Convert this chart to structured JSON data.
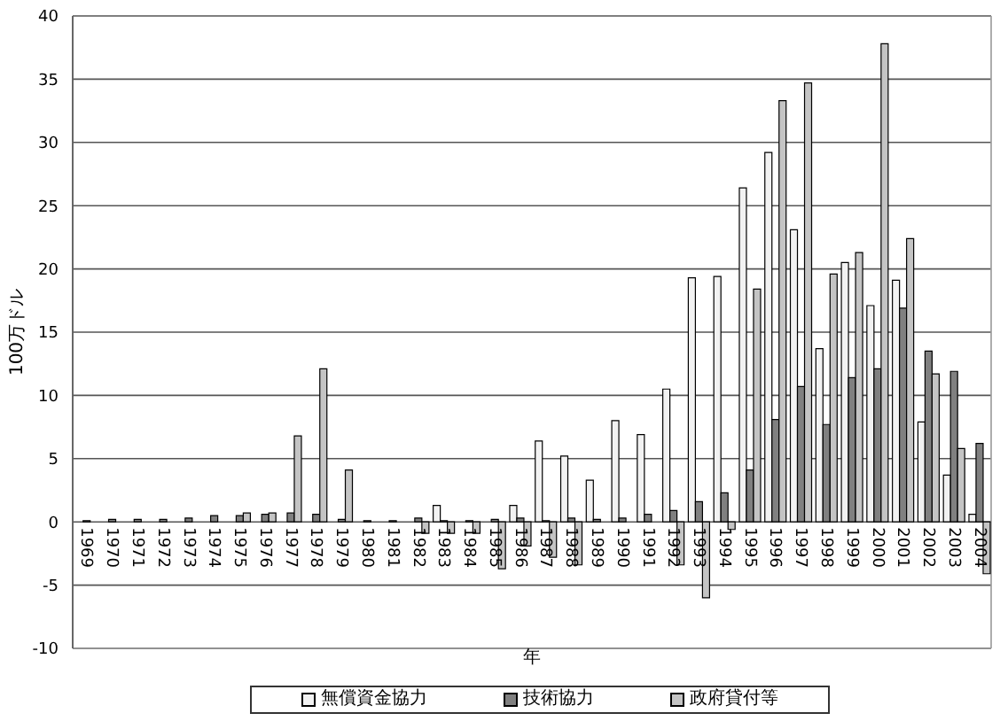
{
  "chart_data": {
    "type": "bar",
    "xlabel": "年",
    "ylabel": "100万ドル",
    "categories": [
      "1969",
      "1970",
      "1971",
      "1972",
      "1973",
      "1974",
      "1975",
      "1976",
      "1977",
      "1978",
      "1979",
      "1980",
      "1981",
      "1982",
      "1983",
      "1984",
      "1985",
      "1986",
      "1987",
      "1988",
      "1989",
      "1990",
      "1991",
      "1992",
      "1993",
      "1994",
      "1995",
      "1996",
      "1997",
      "1998",
      "1999",
      "2000",
      "2001",
      "2002",
      "2003",
      "2004"
    ],
    "series": [
      {
        "name": "無償資金協力",
        "color": "#f2f2f2",
        "values": [
          0,
          0,
          0,
          0,
          0,
          0,
          0,
          0,
          0,
          0,
          0,
          0,
          0,
          0,
          1.3,
          0,
          0,
          1.3,
          6.4,
          5.2,
          3.3,
          8.0,
          6.9,
          10.5,
          19.3,
          19.4,
          26.4,
          29.2,
          23.1,
          13.7,
          20.5,
          17.1,
          19.1,
          7.9,
          3.7,
          0.6
        ]
      },
      {
        "name": "技術協力",
        "color": "#808080",
        "values": [
          0.1,
          0.2,
          0.2,
          0.2,
          0.3,
          0.5,
          0.5,
          0.6,
          0.7,
          0.6,
          0.2,
          0.1,
          0.1,
          0.3,
          0.1,
          0.1,
          0.2,
          0.3,
          0.1,
          0.3,
          0.2,
          0.3,
          0.6,
          0.9,
          1.6,
          2.3,
          4.1,
          8.1,
          10.7,
          7.7,
          11.4,
          12.1,
          16.9,
          13.5,
          11.9,
          6.2
        ]
      },
      {
        "name": "政府貸付等",
        "color": "#c4c4c4",
        "values": [
          0,
          0,
          0,
          0,
          0,
          0,
          0.7,
          0.7,
          6.8,
          12.1,
          4.1,
          0,
          0,
          -0.9,
          -0.9,
          -0.9,
          -3.7,
          -1.9,
          -2.8,
          -3.4,
          0,
          0,
          0,
          -3.4,
          -6.0,
          -0.6,
          18.4,
          33.3,
          34.7,
          19.6,
          21.3,
          37.8,
          22.4,
          11.7,
          5.8,
          -4.1
        ]
      }
    ],
    "ylim": [
      -10,
      40
    ],
    "yticks": [
      -10,
      -5,
      0,
      5,
      10,
      15,
      20,
      25,
      30,
      35,
      40
    ],
    "grid": "y",
    "legend": "bottom"
  }
}
